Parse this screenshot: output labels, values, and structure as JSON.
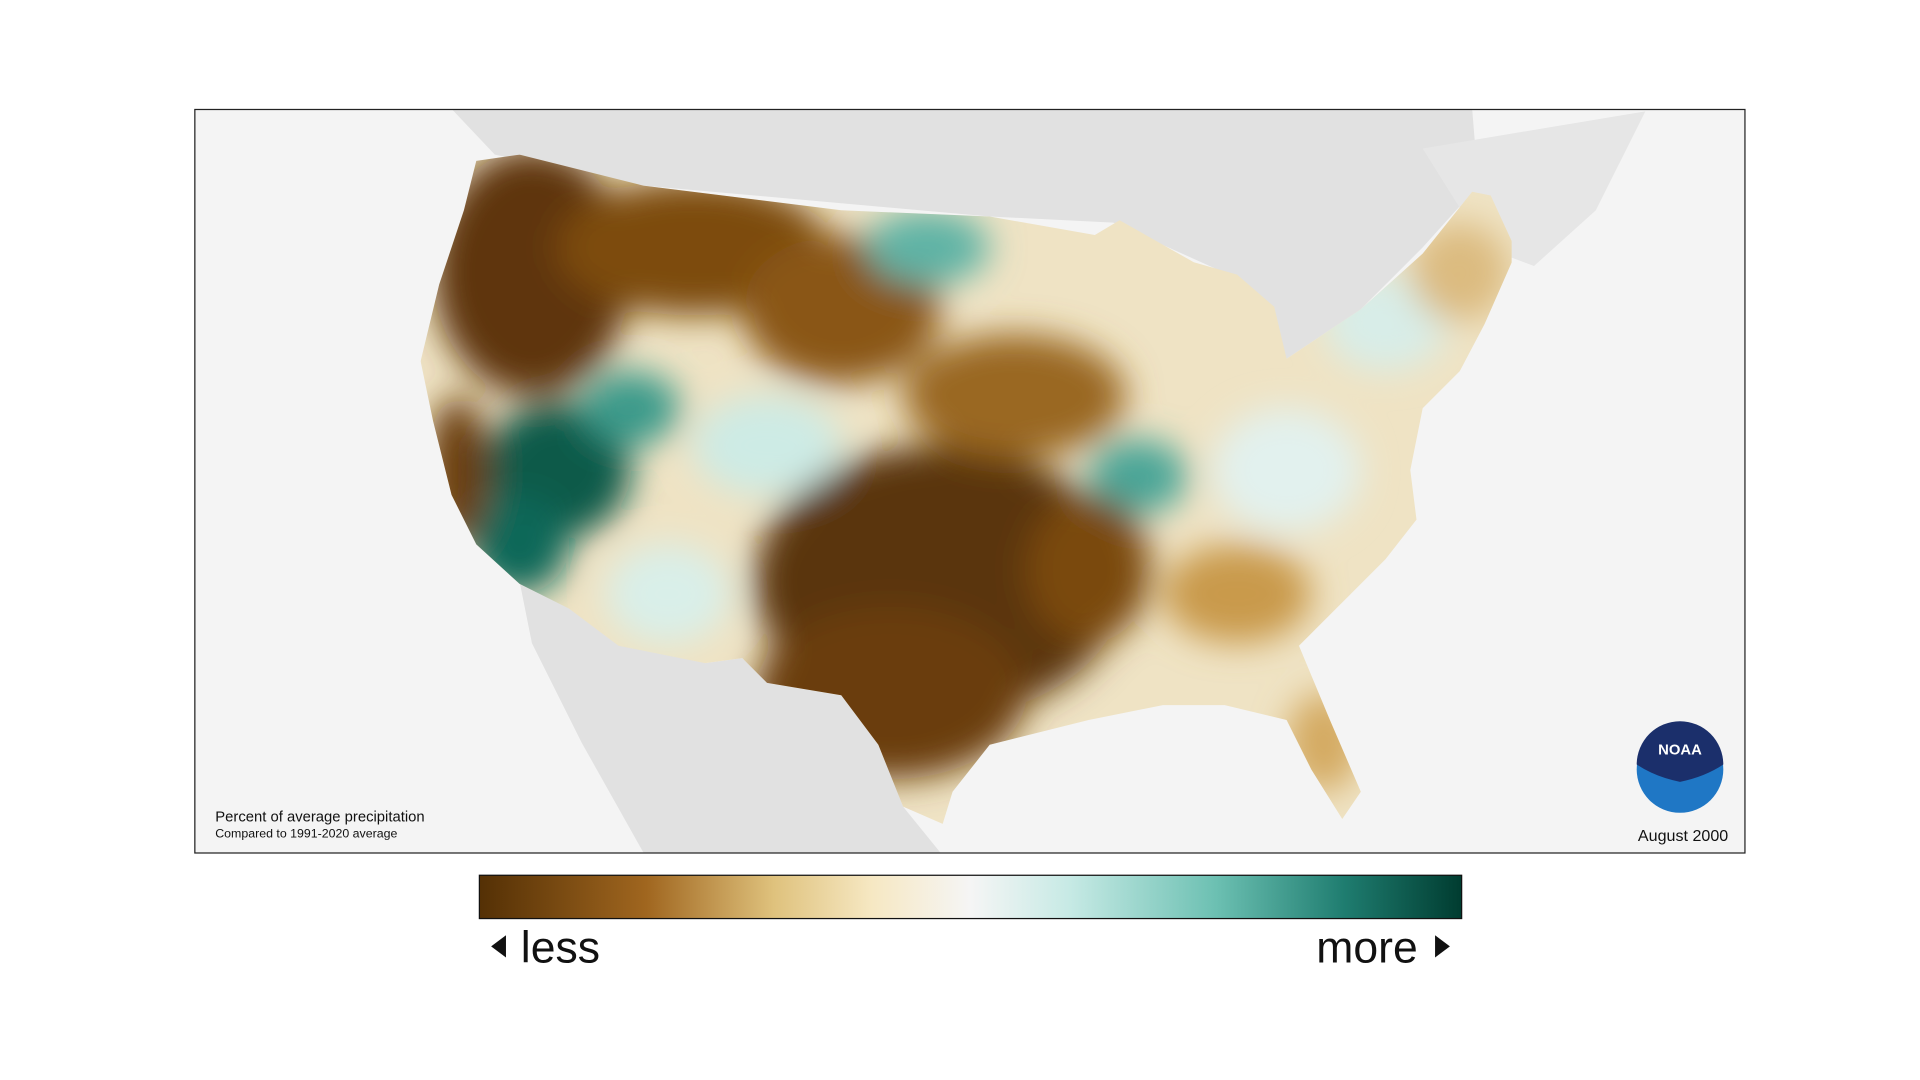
{
  "map": {
    "caption": "Percent of average precipitation",
    "subcaption": "Compared to 1991-2020 average",
    "date": "August 2000"
  },
  "legend": {
    "low_label": "less",
    "high_label": "more"
  },
  "logo": {
    "text": "NOAA"
  }
}
